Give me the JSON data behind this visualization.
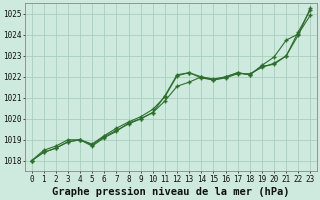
{
  "title": "Graphe pression niveau de la mer (hPa)",
  "bg_color": "#ceeade",
  "grid_color": "#aacfbc",
  "line_color": "#2d6e2d",
  "x_labels": [
    "0",
    "1",
    "2",
    "3",
    "4",
    "5",
    "6",
    "7",
    "8",
    "9",
    "10",
    "11",
    "12",
    "13",
    "14",
    "15",
    "16",
    "17",
    "18",
    "19",
    "20",
    "21",
    "22",
    "23"
  ],
  "ylim": [
    1017.5,
    1025.5
  ],
  "yticks": [
    1018,
    1019,
    1020,
    1021,
    1022,
    1023,
    1024,
    1025
  ],
  "series1": [
    1018.0,
    1018.5,
    1018.7,
    1019.0,
    1019.0,
    1018.8,
    1019.2,
    1019.55,
    1019.85,
    1020.1,
    1020.45,
    1021.05,
    1022.05,
    1022.2,
    1021.95,
    1021.85,
    1022.0,
    1022.2,
    1022.1,
    1022.55,
    1022.95,
    1023.75,
    1024.05,
    1024.95
  ],
  "series2": [
    1018.0,
    1018.4,
    1018.6,
    1018.9,
    1019.0,
    1018.75,
    1019.15,
    1019.45,
    1019.75,
    1020.0,
    1020.3,
    1020.85,
    1021.55,
    1021.75,
    1022.0,
    1021.85,
    1021.95,
    1022.15,
    1022.15,
    1022.45,
    1022.65,
    1023.0,
    1024.15,
    1025.2
  ],
  "series3": [
    1018.0,
    1018.4,
    1018.6,
    1018.9,
    1019.0,
    1018.7,
    1019.1,
    1019.4,
    1019.8,
    1020.0,
    1020.3,
    1021.1,
    1022.1,
    1022.2,
    1022.0,
    1021.9,
    1022.0,
    1022.2,
    1022.1,
    1022.5,
    1022.6,
    1023.0,
    1024.0,
    1025.3
  ],
  "title_fontsize": 7.5,
  "tick_fontsize": 5.5
}
